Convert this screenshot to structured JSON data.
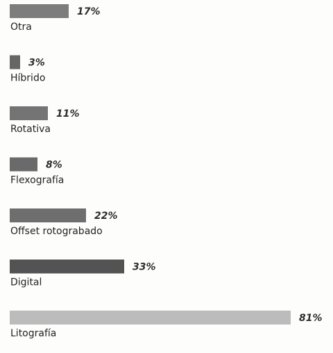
{
  "chart_data": {
    "type": "bar",
    "orientation": "horizontal",
    "categories": [
      "Otra",
      "Híbrido",
      "Rotativa",
      "Flexografía",
      "Offset rotograbado",
      "Digital",
      "Litografía"
    ],
    "values": [
      17,
      3,
      11,
      8,
      22,
      33,
      81
    ],
    "value_labels": [
      "17%",
      "3%",
      "11%",
      "8%",
      "22%",
      "33%",
      "81%"
    ],
    "colors": [
      "#7d7d7d",
      "#666666",
      "#747474",
      "#6a6a6a",
      "#6e6e6e",
      "#535353",
      "#bcbcbc"
    ],
    "title": "",
    "xlabel": "",
    "ylabel": "",
    "xlim": [
      0,
      81
    ],
    "grid": false,
    "legend": "none"
  }
}
